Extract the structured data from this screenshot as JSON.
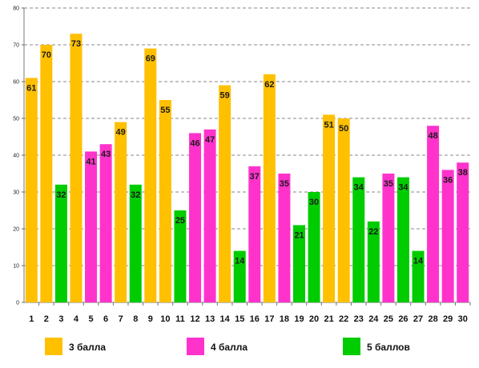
{
  "chart_data": {
    "type": "bar",
    "categories": [
      "1",
      "2",
      "3",
      "4",
      "5",
      "6",
      "7",
      "8",
      "9",
      "10",
      "11",
      "12",
      "13",
      "14",
      "15",
      "16",
      "17",
      "18",
      "19",
      "20",
      "21",
      "22",
      "23",
      "24",
      "25",
      "26",
      "27",
      "28",
      "29",
      "30"
    ],
    "values": [
      61,
      70,
      32,
      73,
      41,
      43,
      49,
      32,
      69,
      55,
      25,
      46,
      47,
      59,
      14,
      37,
      62,
      35,
      21,
      30,
      51,
      50,
      34,
      22,
      35,
      34,
      14,
      48,
      36,
      38
    ],
    "groups": [
      "3",
      "3",
      "5",
      "3",
      "4",
      "4",
      "3",
      "5",
      "3",
      "3",
      "5",
      "4",
      "4",
      "3",
      "5",
      "4",
      "3",
      "4",
      "5",
      "5",
      "3",
      "3",
      "5",
      "5",
      "4",
      "5",
      "5",
      "4",
      "4",
      "4"
    ],
    "series": [
      {
        "key": "3",
        "name": "3 балла",
        "color": "#FFC000"
      },
      {
        "key": "4",
        "name": "4 балла",
        "color": "#FF33CC"
      },
      {
        "key": "5",
        "name": "5 баллов",
        "color": "#00CC00"
      }
    ],
    "yticks": [
      "0",
      "10",
      "20",
      "30",
      "40",
      "50",
      "60",
      "70",
      "80"
    ],
    "ylim": [
      0,
      80
    ],
    "grid": true,
    "legend_position": "bottom",
    "title": "",
    "xlabel": "",
    "ylabel": ""
  }
}
